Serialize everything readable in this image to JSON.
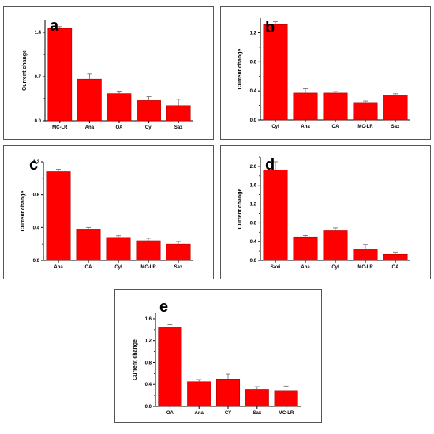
{
  "chart_data": [
    {
      "type": "bar",
      "panel_letter": "a",
      "ylabel": "Current change",
      "categories": [
        "MC-LR",
        "Ana",
        "OA",
        "Cyl",
        "Sax"
      ],
      "values": [
        1.46,
        0.66,
        0.43,
        0.32,
        0.24
      ],
      "errors": [
        0.03,
        0.08,
        0.04,
        0.06,
        0.1
      ],
      "ylim": [
        0,
        1.6
      ],
      "yticks": [
        0.0,
        0.7,
        1.4
      ],
      "ytick_labels": [
        "0.0",
        "0.7",
        "1.4"
      ],
      "bar_color": "#ff0000",
      "grid": false
    },
    {
      "type": "bar",
      "panel_letter": "b",
      "ylabel": "Current change",
      "categories": [
        "Cyl",
        "Ana",
        "OA",
        "MC-LR",
        "Sax"
      ],
      "values": [
        1.31,
        0.37,
        0.37,
        0.24,
        0.34
      ],
      "errors": [
        0.04,
        0.06,
        0.02,
        0.02,
        0.02
      ],
      "ylim": [
        0,
        1.4
      ],
      "yticks": [
        0.0,
        0.4,
        0.8,
        1.2
      ],
      "ytick_labels": [
        "0.0",
        "0.4",
        "0.8",
        "1.2"
      ],
      "bar_color": "#ff0000",
      "grid": false
    },
    {
      "type": "bar",
      "panel_letter": "c",
      "ylabel": "Current change",
      "categories": [
        "Ana",
        "OA",
        "Cyl",
        "MC-LR",
        "Sax"
      ],
      "values": [
        1.08,
        0.38,
        0.28,
        0.24,
        0.2
      ],
      "errors": [
        0.03,
        0.02,
        0.02,
        0.03,
        0.03
      ],
      "ylim": [
        0,
        1.2
      ],
      "yticks": [
        0.0,
        0.4,
        0.8,
        1.2
      ],
      "ytick_labels": [
        "0.0",
        "0.4",
        "0.8",
        "1.2"
      ],
      "bar_color": "#ff0000",
      "grid": false
    },
    {
      "type": "bar",
      "panel_letter": "d",
      "ylabel": "Current change",
      "categories": [
        "Saxi",
        "Ana",
        "Cyl",
        "MC-LR",
        "OA"
      ],
      "values": [
        1.92,
        0.5,
        0.63,
        0.24,
        0.13
      ],
      "errors": [
        0.18,
        0.03,
        0.06,
        0.1,
        0.05
      ],
      "ylim": [
        0,
        2.2
      ],
      "yticks": [
        0.0,
        0.4,
        0.8,
        1.2,
        1.6,
        2.0
      ],
      "ytick_labels": [
        "0.0",
        "0.4",
        "0.8",
        "1.2",
        "1.6",
        "2.0"
      ],
      "bar_color": "#ff0000",
      "grid": false
    },
    {
      "type": "bar",
      "panel_letter": "e",
      "ylabel": "Current change",
      "categories": [
        "OA",
        "Ana",
        "CY",
        "Sax",
        "MC-LR"
      ],
      "values": [
        1.45,
        0.45,
        0.5,
        0.31,
        0.29
      ],
      "errors": [
        0.04,
        0.04,
        0.09,
        0.05,
        0.08
      ],
      "ylim": [
        0,
        1.7
      ],
      "yticks": [
        0.0,
        0.4,
        0.8,
        1.2,
        1.6
      ],
      "ytick_labels": [
        "0.0",
        "0.4",
        "0.8",
        "1.2",
        "1.6"
      ],
      "bar_color": "#ff0000",
      "grid": false
    }
  ]
}
